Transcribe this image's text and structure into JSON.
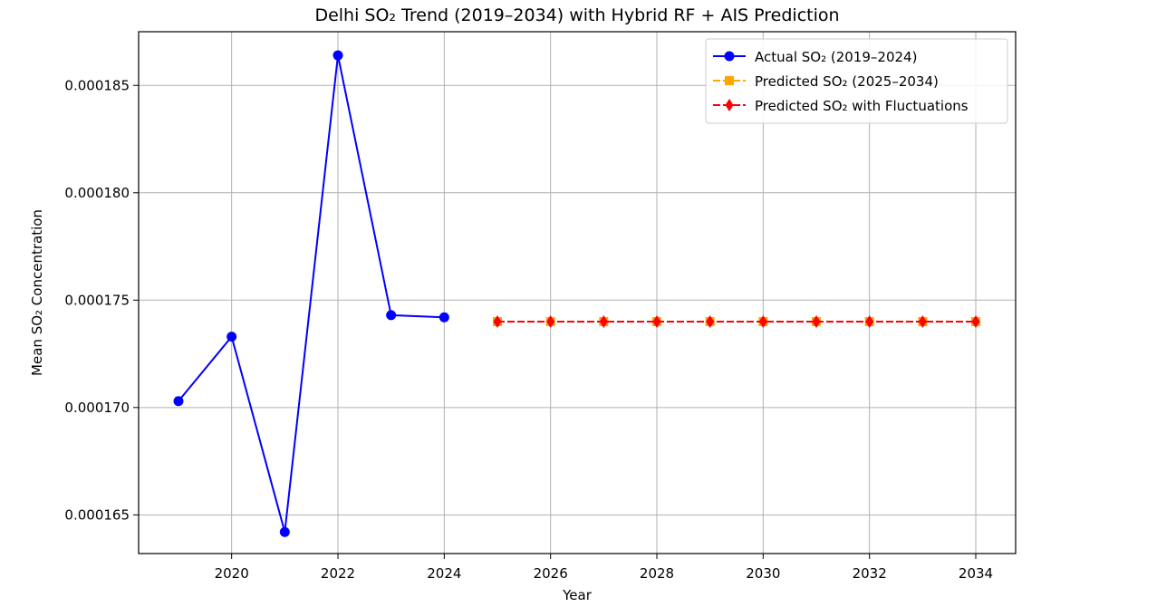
{
  "chart_data": {
    "type": "line",
    "title": "Delhi SO₂ Trend (2019–2034) with Hybrid RF + AIS Prediction",
    "xlabel": "Year",
    "ylabel": "Mean SO₂ Concentration",
    "xlim": [
      2018.25,
      2034.75
    ],
    "ylim": [
      0.0001632,
      0.0001875
    ],
    "x_ticks": [
      2020,
      2022,
      2024,
      2026,
      2028,
      2030,
      2032,
      2034
    ],
    "x_tick_labels": [
      "2020",
      "2022",
      "2024",
      "2026",
      "2028",
      "2030",
      "2032",
      "2034"
    ],
    "y_ticks": [
      0.000165,
      0.00017,
      0.000175,
      0.00018,
      0.000185
    ],
    "y_tick_labels": [
      "0.000165",
      "0.000170",
      "0.000175",
      "0.000180",
      "0.000185"
    ],
    "grid": true,
    "legend_position": "top-right",
    "series": [
      {
        "name": "Actual SO₂ (2019–2024)",
        "color": "#0000ff",
        "line_style": "solid",
        "marker": "circle",
        "x": [
          2019,
          2020,
          2021,
          2022,
          2023,
          2024
        ],
        "values": [
          0.0001703,
          0.0001733,
          0.0001642,
          0.0001864,
          0.0001743,
          0.0001742
        ]
      },
      {
        "name": "Predicted SO₂ (2025–2034)",
        "color": "#ffa500",
        "line_style": "dashed",
        "marker": "square",
        "x": [
          2025,
          2026,
          2027,
          2028,
          2029,
          2030,
          2031,
          2032,
          2033,
          2034
        ],
        "values": [
          0.000174,
          0.000174,
          0.000174,
          0.000174,
          0.000174,
          0.000174,
          0.000174,
          0.000174,
          0.000174,
          0.000174
        ]
      },
      {
        "name": "Predicted SO₂ with Fluctuations",
        "color": "#ff0000",
        "line_style": "dashed",
        "marker": "diamond",
        "x": [
          2025,
          2026,
          2027,
          2028,
          2029,
          2030,
          2031,
          2032,
          2033,
          2034
        ],
        "values": [
          0.000174,
          0.000174,
          0.000174,
          0.000174,
          0.000174,
          0.000174,
          0.000174,
          0.000174,
          0.000174,
          0.000174
        ]
      }
    ]
  }
}
